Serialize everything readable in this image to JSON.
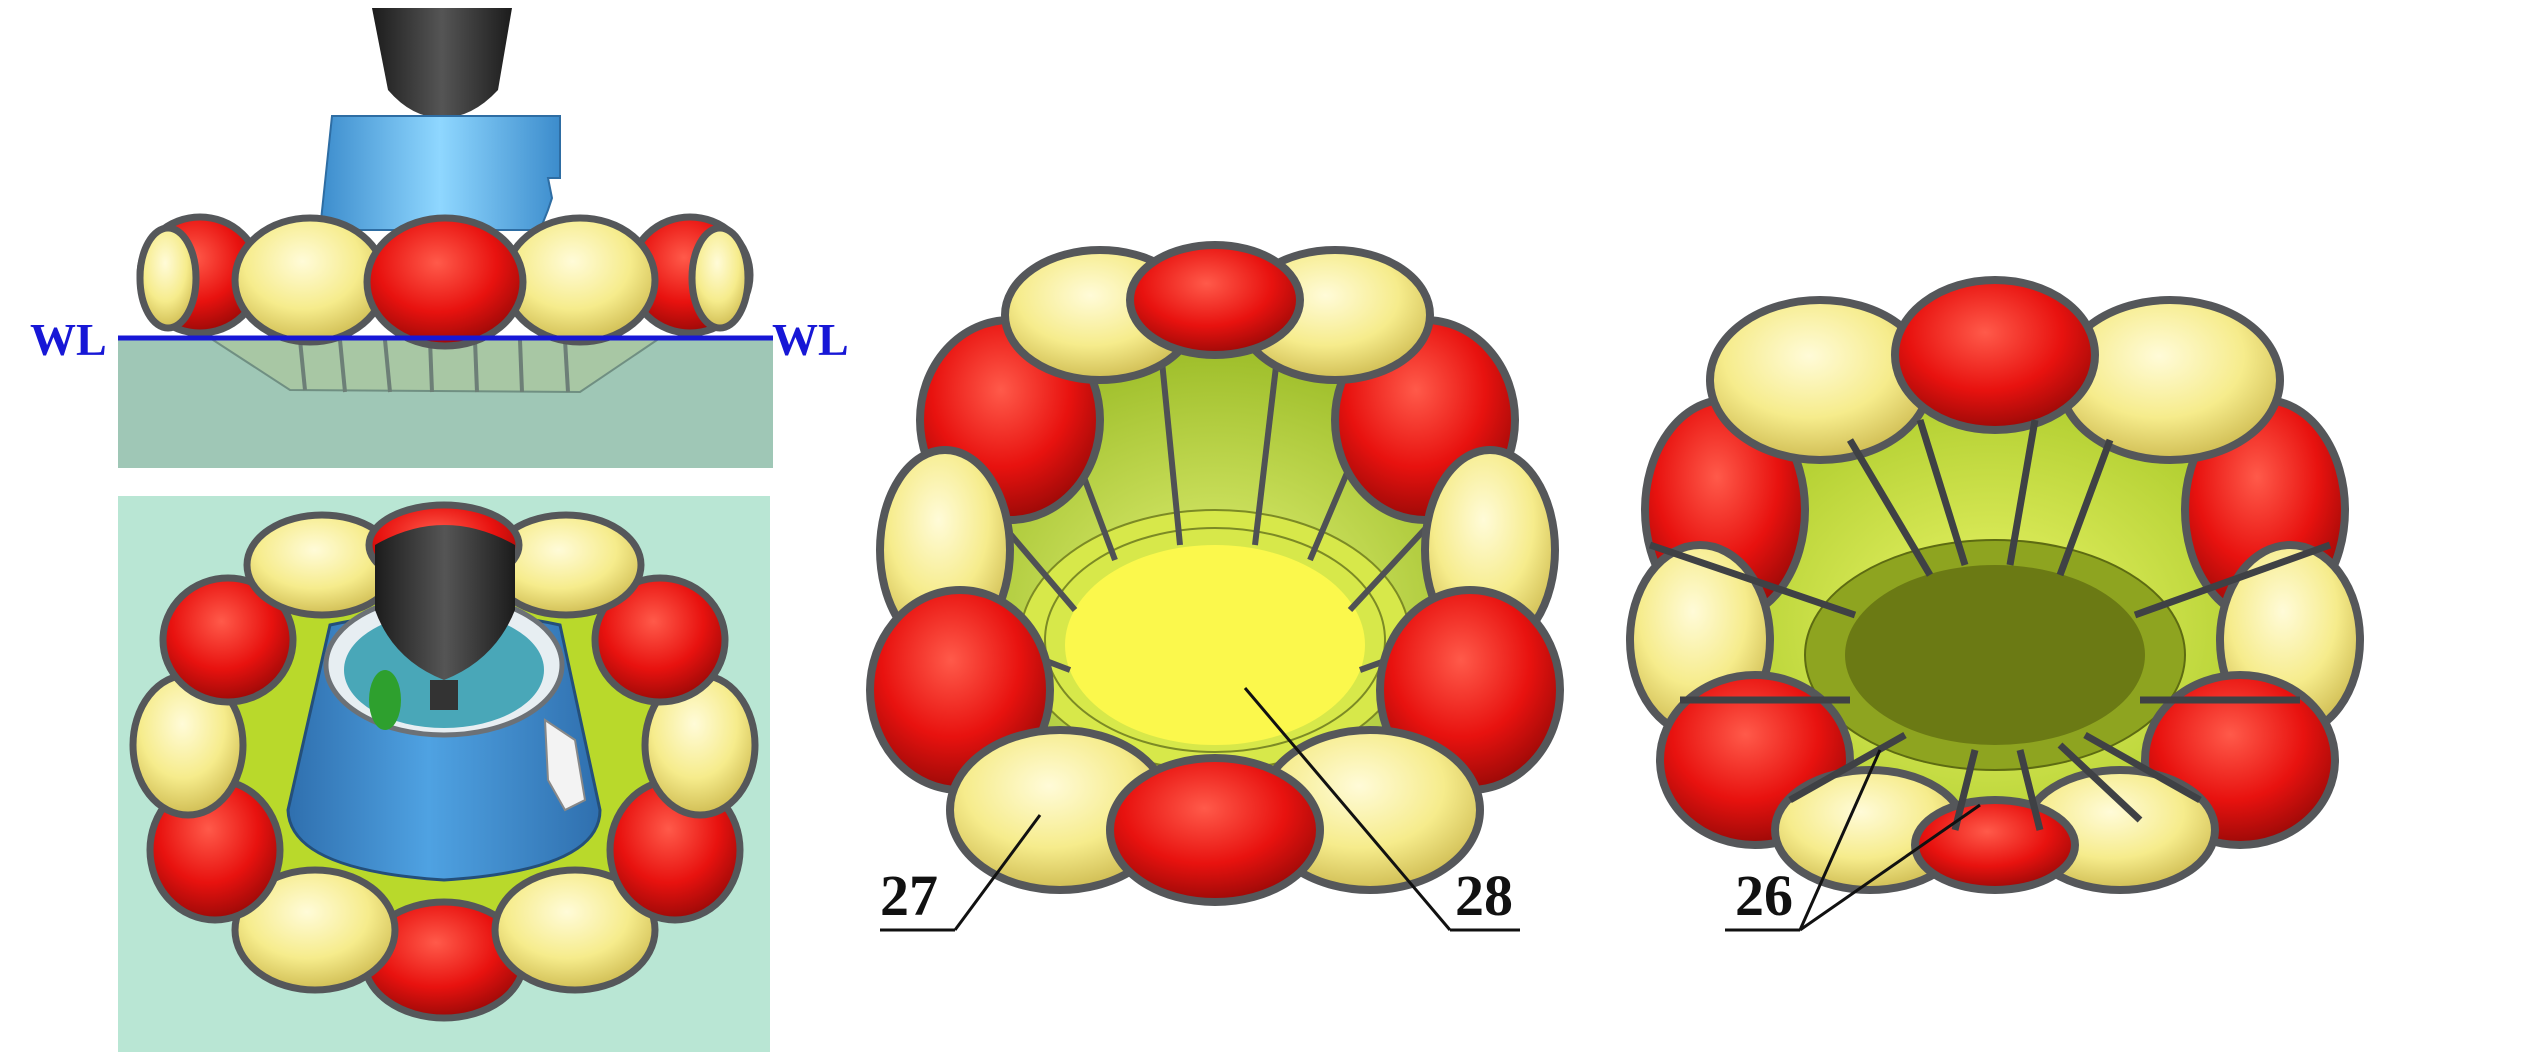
{
  "figure": {
    "water_line_label_left": "WL",
    "water_line_label_right": "WL",
    "callouts": [
      "27",
      "28",
      "26"
    ]
  },
  "colors": {
    "float_red": "#e8120f",
    "float_yellow": "#f6ec8c",
    "strap_gray": "#5d5f62",
    "water_top": "#9fc7b6",
    "water_bottom_panel": "#b9e6d4",
    "capsule_blue": "#3f8fd2",
    "capsule_blue_light": "#5ab3ef",
    "nozzle_black": "#2b2b2b",
    "inner_green": "#b9d92b",
    "floor_yellow": "#fbf84c",
    "floor_olive": "#6b7a14",
    "wl_blue": "#1717d6",
    "label_black": "#111111"
  }
}
